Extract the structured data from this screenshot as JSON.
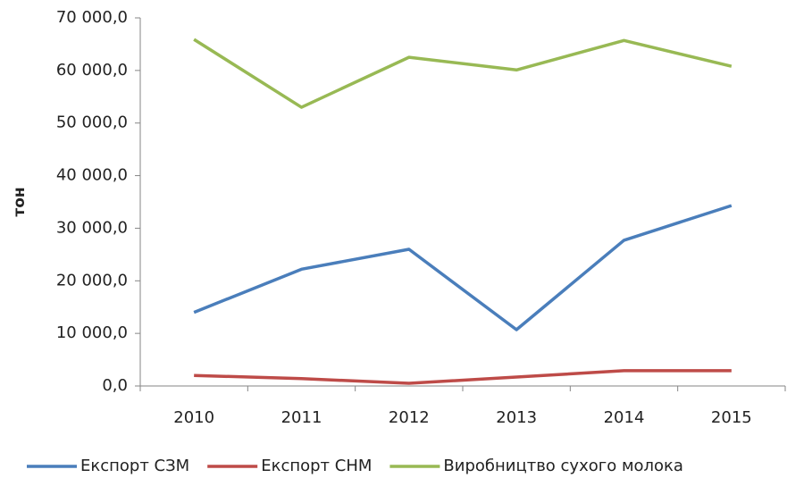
{
  "chart_data": {
    "type": "line",
    "y_label": "тон",
    "categories": [
      "2010",
      "2011",
      "2012",
      "2013",
      "2014",
      "2015"
    ],
    "series": [
      {
        "name": "Експорт СЗМ",
        "color": "#4a7ebb",
        "values": [
          14000,
          22200,
          26000,
          10700,
          27700,
          34300
        ]
      },
      {
        "name": "Експорт СНМ",
        "color": "#be4b48",
        "values": [
          2000,
          1400,
          500,
          1700,
          2900,
          2900
        ]
      },
      {
        "name": "Виробництво сухого молока",
        "color": "#98b954",
        "values": [
          65900,
          53000,
          62500,
          60100,
          65700,
          60800
        ]
      }
    ],
    "ylim": [
      0,
      70000
    ],
    "yticks": [
      {
        "value": 0,
        "label": "0,0"
      },
      {
        "value": 10000,
        "label": "10 000,0"
      },
      {
        "value": 20000,
        "label": "20 000,0"
      },
      {
        "value": 30000,
        "label": "30 000,0"
      },
      {
        "value": 40000,
        "label": "40 000,0"
      },
      {
        "value": 50000,
        "label": "50 000,0"
      },
      {
        "value": 60000,
        "label": "60 000,0"
      },
      {
        "value": 70000,
        "label": "70 000,0"
      }
    ],
    "grid": false,
    "legend": "bottom"
  }
}
